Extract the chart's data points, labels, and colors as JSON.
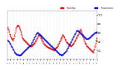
{
  "background_color": "#ffffff",
  "plot_bg_color": "#ffffff",
  "grid_color": "#cccccc",
  "red_color": "#dd0000",
  "blue_color": "#0000cc",
  "legend_humidity_label": "Humidity",
  "legend_temp_label": "Temperature",
  "legend_humidity_color": "#dd0000",
  "legend_temp_color": "#0000cc",
  "yticks_right": [
    100,
    80,
    60,
    40,
    20
  ],
  "ylim": [
    0,
    110
  ],
  "title_color": "#000000",
  "tick_color": "#000000",
  "humidity": [
    72,
    70,
    68,
    65,
    62,
    58,
    55,
    52,
    50,
    48,
    46,
    45,
    44,
    46,
    48,
    52,
    55,
    60,
    65,
    70,
    72,
    75,
    76,
    77,
    76,
    75,
    73,
    70,
    68,
    65,
    62,
    58,
    54,
    50,
    48,
    46,
    45,
    44,
    43,
    42,
    41,
    40,
    39,
    38,
    37,
    36,
    35,
    34,
    33,
    32,
    31,
    30,
    29,
    30,
    31,
    32,
    33,
    34,
    35,
    36,
    37,
    38,
    40,
    42,
    44,
    46,
    48,
    50,
    52,
    54,
    56,
    55,
    54,
    52,
    50,
    48,
    46,
    44,
    42,
    40,
    38,
    36,
    35,
    34,
    33,
    32,
    31,
    30,
    29,
    28,
    28,
    27,
    27,
    26,
    26,
    25,
    25,
    24,
    24,
    23,
    23,
    22,
    22,
    21,
    22,
    23,
    24,
    25,
    26,
    27,
    28,
    30,
    32,
    34,
    36,
    38,
    40,
    42,
    44,
    46,
    48,
    50,
    52,
    54,
    55,
    53,
    51,
    49,
    47,
    45,
    43,
    41,
    39,
    38,
    37,
    36,
    35,
    34,
    33,
    32,
    31,
    30,
    31,
    32,
    33,
    34,
    35,
    36,
    38,
    40,
    42,
    44,
    46,
    48,
    50,
    52,
    54,
    56,
    58,
    60,
    62,
    64,
    66,
    68,
    65,
    62,
    59,
    56,
    53,
    50,
    47,
    44,
    41,
    38,
    36,
    34,
    32,
    30,
    29,
    28,
    27,
    26,
    25,
    24,
    23,
    22,
    21,
    20,
    19,
    18,
    17,
    16,
    20,
    24,
    28,
    32,
    36,
    40,
    44,
    48
  ],
  "temperature": [
    42,
    43,
    42,
    41,
    40,
    38,
    36,
    34,
    32,
    30,
    28,
    26,
    24,
    22,
    20,
    18,
    16,
    15,
    14,
    13,
    12,
    12,
    11,
    11,
    10,
    10,
    10,
    10,
    10,
    10,
    11,
    12,
    13,
    14,
    15,
    16,
    17,
    18,
    19,
    20,
    21,
    22,
    23,
    24,
    25,
    26,
    27,
    28,
    29,
    30,
    31,
    32,
    33,
    35,
    37,
    39,
    41,
    43,
    45,
    47,
    49,
    51,
    53,
    55,
    57,
    59,
    60,
    60,
    60,
    59,
    58,
    57,
    56,
    55,
    54,
    53,
    52,
    51,
    50,
    49,
    48,
    47,
    46,
    45,
    44,
    43,
    42,
    41,
    40,
    39,
    38,
    37,
    36,
    35,
    34,
    33,
    32,
    31,
    30,
    29,
    28,
    27,
    26,
    25,
    24,
    23,
    22,
    21,
    20,
    19,
    18,
    17,
    16,
    15,
    14,
    13,
    12,
    12,
    11,
    11,
    10,
    10,
    10,
    11,
    12,
    13,
    14,
    15,
    16,
    17,
    18,
    19,
    21,
    23,
    25,
    27,
    29,
    31,
    33,
    35,
    37,
    39,
    41,
    43,
    45,
    47,
    49,
    51,
    53,
    55,
    57,
    59,
    61,
    63,
    65,
    65,
    65,
    65,
    64,
    63,
    62,
    61,
    60,
    59,
    58,
    57,
    56,
    55,
    54,
    53,
    52,
    51,
    50,
    49,
    48,
    47,
    46,
    46,
    46,
    47,
    47,
    48,
    48,
    49,
    50,
    51,
    52,
    53,
    54,
    55,
    56,
    57,
    58,
    59,
    60,
    60,
    61,
    61,
    62,
    62
  ]
}
